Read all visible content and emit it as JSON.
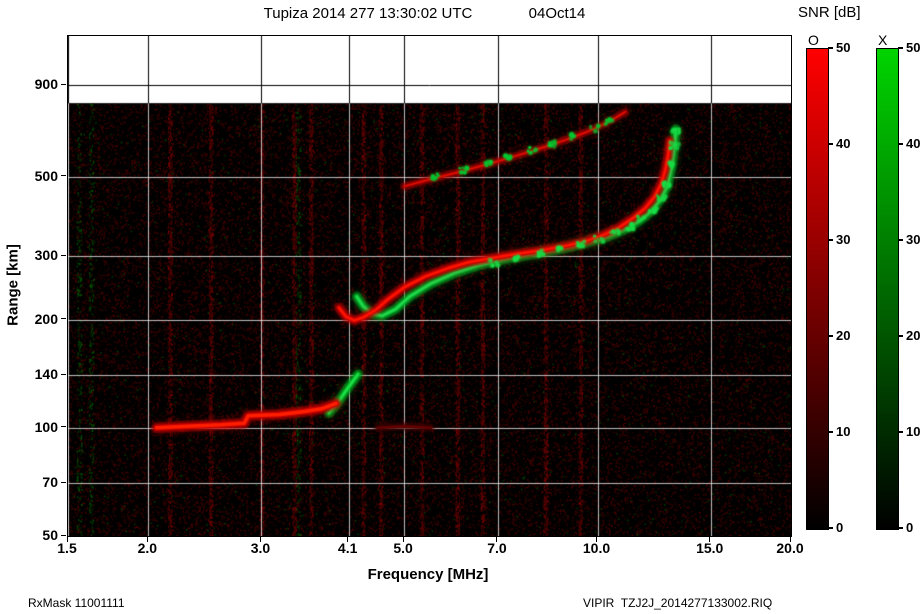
{
  "footer": {
    "left": "RxMask 11001111",
    "right": "VIPIR  TZJ2J_2014277133002.RIQ"
  },
  "chart_data": {
    "type": "heatmap",
    "title": "Tupiza 2014 277 13:30:02 UTC",
    "date": "04Oct14",
    "xlabel": "Frequency [MHz]",
    "ylabel": "Range [km]",
    "x_scale": "log",
    "y_scale": "log",
    "xlim": [
      1.5,
      20
    ],
    "ylim": [
      50,
      1230
    ],
    "x_ticks": [
      "1.5",
      "2.0",
      "3.0",
      "4.1",
      "5.0",
      "7.0",
      "10.0",
      "15.0",
      "20.0"
    ],
    "y_ticks": [
      "50",
      "70",
      "100",
      "140",
      "200",
      "300",
      "500",
      "900"
    ],
    "grid": true,
    "background": "#000000",
    "no_data_region": {
      "above_km": 800,
      "color": "#ffffff"
    },
    "colorbar": {
      "label": "SNR [dB]",
      "min": 0,
      "max": 50,
      "ticks": [
        "0",
        "10",
        "20",
        "30",
        "40",
        "50"
      ],
      "modes": [
        {
          "name": "O",
          "gradient": [
            "#000000",
            "#ff0000"
          ]
        },
        {
          "name": "X",
          "gradient": [
            "#000000",
            "#00d400"
          ]
        }
      ]
    },
    "rfi_lines": {
      "red": [
        2.16,
        2.5,
        3.0,
        3.37,
        3.58,
        4.32,
        4.6,
        5.32,
        6.05,
        6.62,
        8.3,
        9.4
      ],
      "green": [
        1.56,
        1.63,
        3.42
      ]
    },
    "traces": [
      {
        "name": "multihop-F-O",
        "mode": "O",
        "color": "#b40000",
        "core": "#e01000",
        "width": 3,
        "points": [
          [
            5.0,
            470
          ],
          [
            5.4,
            488
          ],
          [
            5.9,
            508
          ],
          [
            6.4,
            528
          ],
          [
            7.0,
            552
          ],
          [
            7.6,
            577
          ],
          [
            8.2,
            602
          ],
          [
            8.9,
            632
          ],
          [
            9.6,
            665
          ],
          [
            10.2,
            698
          ],
          [
            10.7,
            732
          ],
          [
            11.05,
            758
          ]
        ]
      },
      {
        "name": "multihop-F-X-speckle",
        "mode": "X",
        "style": "dots",
        "color": "#00c832",
        "width": 2,
        "points": [
          [
            5.6,
            500
          ],
          [
            6.2,
            522
          ],
          [
            6.8,
            545
          ],
          [
            7.3,
            567
          ],
          [
            7.9,
            592
          ],
          [
            8.5,
            617
          ],
          [
            9.2,
            648
          ],
          [
            9.9,
            682
          ],
          [
            10.45,
            710
          ]
        ]
      },
      {
        "name": "E-layer-faint-O",
        "mode": "O",
        "color": "#4a0000",
        "core": "#6e0000",
        "width": 3,
        "points": [
          [
            4.55,
            100
          ],
          [
            5.0,
            101
          ],
          [
            5.5,
            100
          ]
        ]
      },
      {
        "name": "E-layer-X",
        "mode": "X",
        "color": "#00b422",
        "core": "#1ee04a",
        "width": 5,
        "points": [
          [
            3.82,
            110
          ],
          [
            3.95,
            118
          ],
          [
            4.05,
            126
          ],
          [
            4.15,
            134
          ],
          [
            4.24,
            141
          ]
        ]
      },
      {
        "name": "E-layer-O",
        "mode": "O",
        "color": "#c80000",
        "core": "#ff1e00",
        "width": 6,
        "points": [
          [
            2.06,
            100
          ],
          [
            2.3,
            101
          ],
          [
            2.6,
            102
          ],
          [
            2.82,
            103
          ],
          [
            2.86,
            108
          ],
          [
            3.2,
            109
          ],
          [
            3.5,
            111
          ],
          [
            3.72,
            113
          ],
          [
            3.92,
            117
          ]
        ]
      },
      {
        "name": "F-layer-X",
        "mode": "X",
        "color": "#00b428",
        "core": "#20dc50",
        "width": 5,
        "points": [
          [
            4.22,
            232
          ],
          [
            4.32,
            218
          ],
          [
            4.45,
            208
          ],
          [
            4.62,
            205
          ],
          [
            4.85,
            214
          ],
          [
            5.1,
            232
          ],
          [
            5.5,
            252
          ],
          [
            6.0,
            270
          ],
          [
            6.6,
            285
          ],
          [
            7.2,
            295
          ],
          [
            8.0,
            305
          ],
          [
            8.8,
            315
          ],
          [
            9.6,
            327
          ],
          [
            10.4,
            341
          ],
          [
            11.0,
            356
          ],
          [
            11.6,
            376
          ],
          [
            12.1,
            400
          ],
          [
            12.5,
            430
          ],
          [
            12.85,
            472
          ],
          [
            13.05,
            535
          ],
          [
            13.18,
            612
          ],
          [
            13.24,
            678
          ]
        ]
      },
      {
        "name": "F-layer-O",
        "mode": "O",
        "color": "#cc0000",
        "core": "#ff1400",
        "width": 5,
        "points": [
          [
            3.96,
            216
          ],
          [
            4.06,
            204
          ],
          [
            4.18,
            199
          ],
          [
            4.32,
            203
          ],
          [
            4.52,
            213
          ],
          [
            4.72,
            228
          ],
          [
            5.0,
            246
          ],
          [
            5.4,
            264
          ],
          [
            5.85,
            278
          ],
          [
            6.3,
            289
          ],
          [
            7.0,
            299
          ],
          [
            7.6,
            306
          ],
          [
            8.2,
            312
          ],
          [
            9.0,
            322
          ],
          [
            9.6,
            331
          ],
          [
            10.2,
            344
          ],
          [
            10.8,
            361
          ],
          [
            11.35,
            383
          ],
          [
            11.85,
            408
          ],
          [
            12.25,
            438
          ],
          [
            12.55,
            476
          ],
          [
            12.75,
            522
          ],
          [
            12.88,
            572
          ],
          [
            12.95,
            630
          ]
        ]
      },
      {
        "name": "F-layer-X-dots",
        "mode": "X",
        "style": "dots",
        "color": "#19dc46",
        "width": 2,
        "points": [
          [
            6.9,
            288
          ],
          [
            7.5,
            298
          ],
          [
            8.15,
            307
          ],
          [
            8.8,
            316
          ],
          [
            9.45,
            325
          ],
          [
            10.05,
            335
          ],
          [
            10.65,
            349
          ],
          [
            11.2,
            363
          ],
          [
            11.7,
            383
          ],
          [
            12.15,
            406
          ],
          [
            12.55,
            436
          ],
          [
            12.88,
            478
          ],
          [
            13.06,
            540
          ],
          [
            13.18,
            612
          ],
          [
            13.24,
            668
          ]
        ]
      }
    ]
  }
}
